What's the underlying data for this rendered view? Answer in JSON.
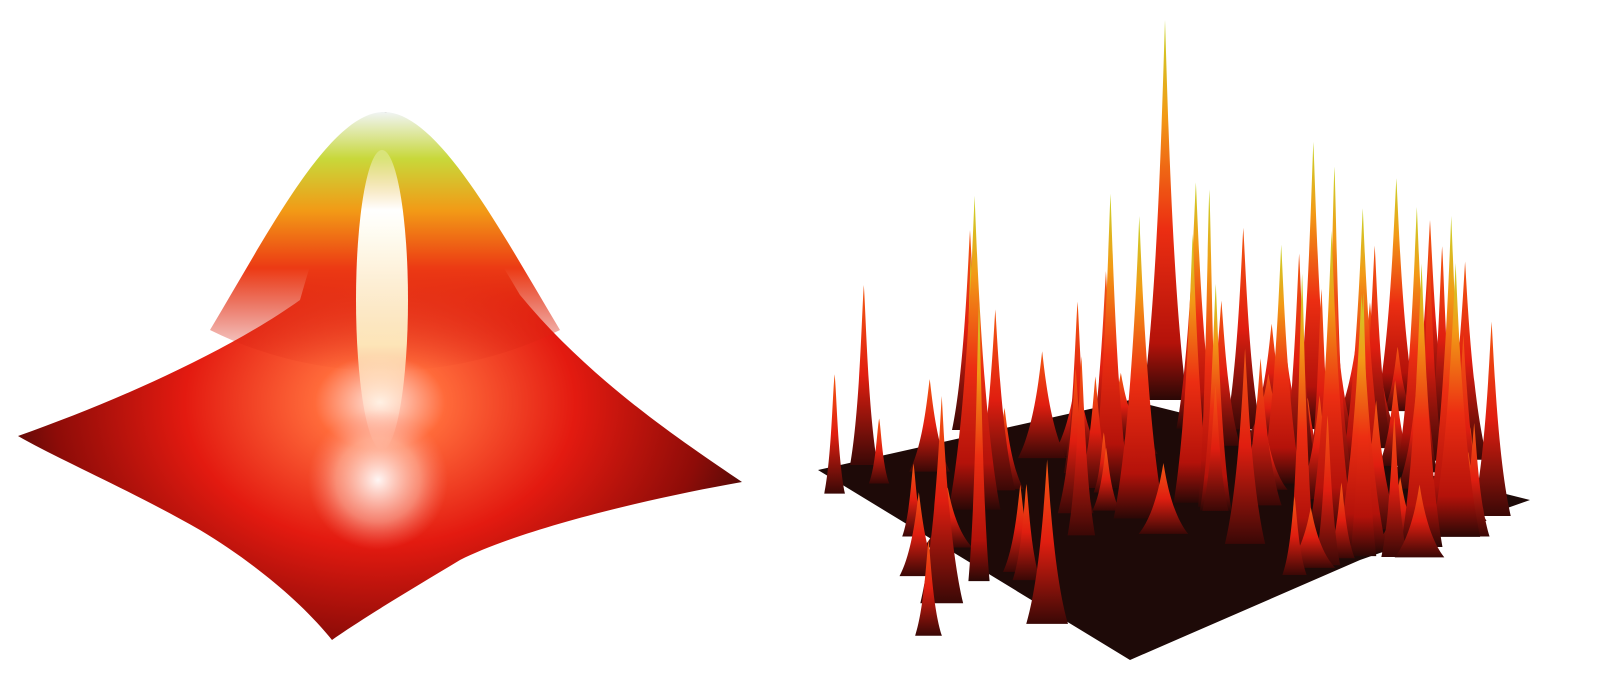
{
  "figure": {
    "panels": [
      {
        "id": "smooth-gaussian-surface",
        "peak_count": 1,
        "colormap": [
          "#1a0a08",
          "#7a0a06",
          "#e81f10",
          "#f47a10",
          "#c9d42a",
          "#ffffff"
        ]
      },
      {
        "id": "speckle-peaks-surface",
        "colormap": [
          "#1a0a08",
          "#7a0a06",
          "#e81f10",
          "#f47a10",
          "#c9d42a",
          "#ffffff"
        ]
      }
    ],
    "background": "#ffffff"
  }
}
